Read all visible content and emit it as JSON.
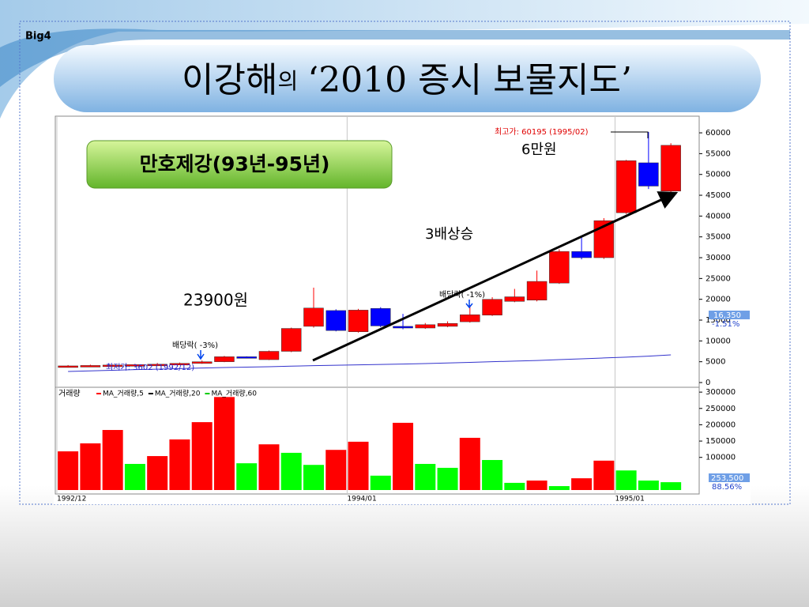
{
  "header": {
    "logo": "Big4",
    "title_name": "이강해",
    "title_particle": "의",
    "title_rest": "‘2010 증시 보물지도’"
  },
  "badge": "만호제강(93년-95년)",
  "annotations": {
    "high_note": "최고가: 60195 (1995/02)",
    "target": "6만원",
    "rise": "3배상승",
    "start_price": "23900원",
    "dividend_1": "배당락( -1%)",
    "dividend_3": "배당락( -3%)",
    "low_note": "최저가: 3602 (1992/12)",
    "last_price": "16,350",
    "last_change": "-1.51%",
    "last_volume": "253,500",
    "volume_ratio": "88.56%"
  },
  "chart_data": [
    {
      "type": "candlestick",
      "categories": [
        "1992/12",
        null,
        null,
        null,
        null,
        null,
        null,
        null,
        null,
        null,
        null,
        null,
        null,
        "1994/01",
        null,
        null,
        null,
        null,
        null,
        null,
        null,
        null,
        null,
        null,
        null,
        "1995/01",
        null,
        null
      ],
      "open": [
        3700,
        3900,
        4100,
        4100,
        4300,
        4400,
        4600,
        5000,
        6200,
        5500,
        7500,
        13500,
        17300,
        12200,
        17800,
        13500,
        13100,
        13500,
        14600,
        16200,
        19500,
        19800,
        23900,
        31500,
        30000,
        40800,
        52800,
        46000
      ],
      "high": [
        4200,
        4300,
        4300,
        4500,
        4700,
        4800,
        5300,
        6400,
        6300,
        7700,
        13200,
        22800,
        17600,
        17700,
        18100,
        16500,
        14300,
        14700,
        18600,
        20500,
        22500,
        26900,
        32000,
        35300,
        39500,
        53500,
        60195,
        57500
      ],
      "low": [
        3602,
        3800,
        4000,
        4000,
        4200,
        4300,
        4500,
        4900,
        5800,
        5400,
        7300,
        13200,
        12300,
        12000,
        13300,
        12800,
        12900,
        13300,
        14400,
        16000,
        19300,
        19500,
        23700,
        29600,
        29700,
        40500,
        46500,
        45500
      ],
      "close": [
        4000,
        4100,
        4200,
        4300,
        4400,
        4600,
        5000,
        6200,
        5900,
        7500,
        13000,
        17900,
        12500,
        17400,
        13600,
        13100,
        13900,
        14200,
        16300,
        20000,
        20600,
        24300,
        31500,
        30000,
        38900,
        53300,
        47200,
        57000
      ],
      "up_color": "#ff0000",
      "down_color": "#0000ff",
      "moving_average": {
        "color": "#3333cc",
        "values": [
          2650,
          2800,
          2950,
          3100,
          3200,
          3350,
          3500,
          3600,
          3700,
          3800,
          3950,
          4050,
          4150,
          4250,
          4350,
          4450,
          4550,
          4700,
          4850,
          5000,
          5150,
          5300,
          5500,
          5700,
          5900,
          6100,
          6350,
          6650
        ]
      },
      "ylim": [
        0,
        64000
      ],
      "yticks": [
        0,
        5000,
        10000,
        15000,
        20000,
        25000,
        30000,
        35000,
        40000,
        45000,
        50000,
        55000,
        60000
      ]
    },
    {
      "type": "bar",
      "title": "거래량",
      "values": [
        118500,
        143000,
        184000,
        80000,
        104000,
        155000,
        208000,
        285000,
        82000,
        140000,
        114000,
        77000,
        123000,
        148000,
        44000,
        206000,
        80000,
        68000,
        160000,
        92000,
        22000,
        29000,
        12000,
        36000,
        90000,
        60000,
        29000,
        24000
      ],
      "colors": [
        "#ff0000",
        "#ff0000",
        "#ff0000",
        "#00ff00",
        "#ff0000",
        "#ff0000",
        "#ff0000",
        "#ff0000",
        "#00ff00",
        "#ff0000",
        "#00ff00",
        "#00ff00",
        "#ff0000",
        "#ff0000",
        "#00ff00",
        "#ff0000",
        "#00ff00",
        "#00ff00",
        "#ff0000",
        "#00ff00",
        "#00ff00",
        "#ff0000",
        "#00ff00",
        "#ff0000",
        "#ff0000",
        "#00ff00",
        "#00ff00",
        "#00ff00"
      ],
      "legend": [
        {
          "name": "MA_거래량,5",
          "color": "#ff0000"
        },
        {
          "name": "MA_거래량,20",
          "color": "#000000"
        },
        {
          "name": "MA_거래량,60",
          "color": "#00cc00"
        }
      ],
      "ylim": [
        0,
        310000
      ],
      "yticks": [
        100000,
        150000,
        200000,
        250000,
        300000
      ]
    }
  ]
}
